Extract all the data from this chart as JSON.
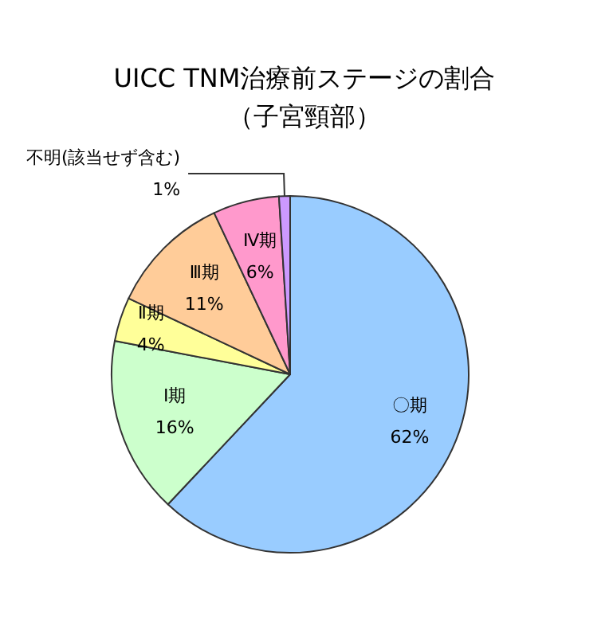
{
  "chart_data": {
    "type": "pie",
    "title": "UICC TNM治療前ステージの割合（子宮頸部）",
    "categories": [
      "〇期",
      "Ⅰ期",
      "Ⅱ期",
      "Ⅲ期",
      "Ⅳ期",
      "不明(該当せず含む)"
    ],
    "values": [
      62,
      16,
      4,
      11,
      6,
      1
    ],
    "value_labels": [
      "62%",
      "16%",
      "4%",
      "11%",
      "6%",
      "1%"
    ],
    "colors": [
      "#99ccff",
      "#ccffcc",
      "#ffff99",
      "#ffcc99",
      "#ff99cc",
      "#cc99ff"
    ],
    "legend": false
  }
}
